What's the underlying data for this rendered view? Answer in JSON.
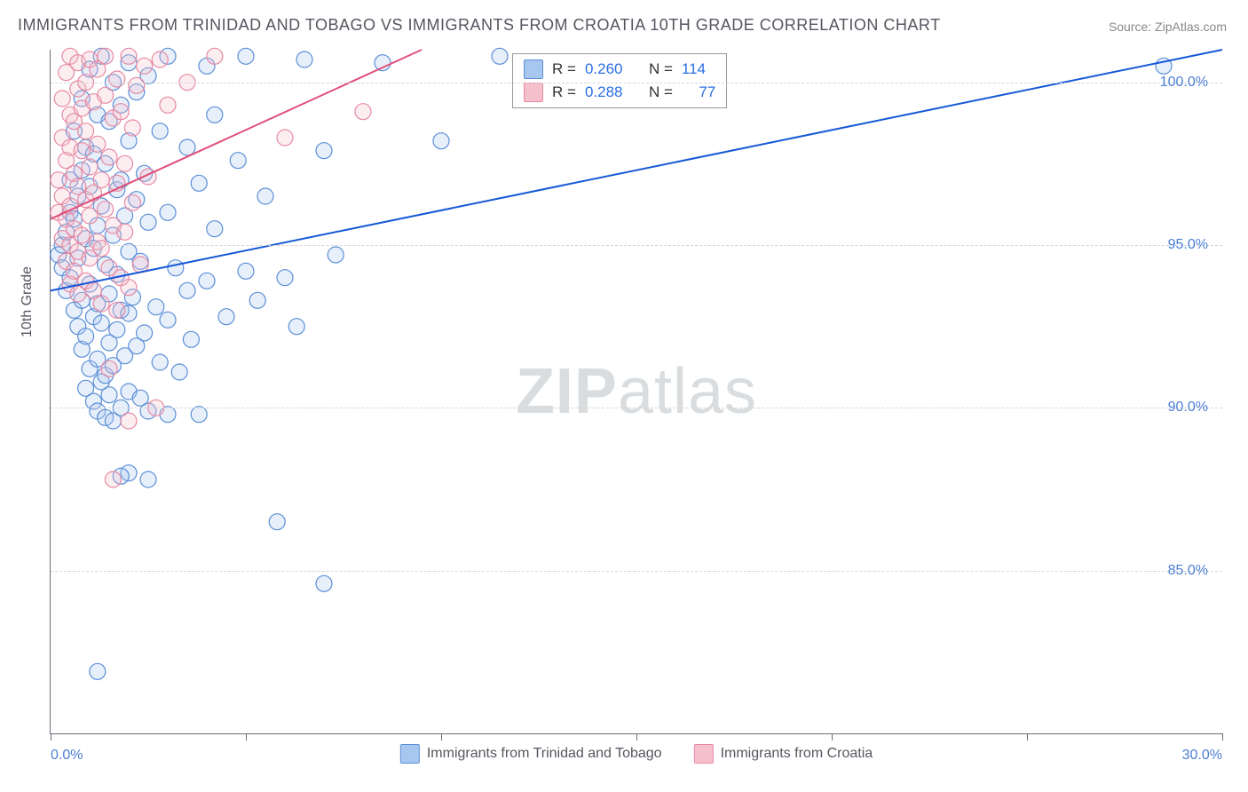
{
  "title": "IMMIGRANTS FROM TRINIDAD AND TOBAGO VS IMMIGRANTS FROM CROATIA 10TH GRADE CORRELATION CHART",
  "source_prefix": "Source: ",
  "source_name": "ZipAtlas.com",
  "y_axis_label": "10th Grade",
  "watermark_bold": "ZIP",
  "watermark_thin": "atlas",
  "chart": {
    "type": "scatter",
    "background_color": "#ffffff",
    "grid_color": "#d6d6d6",
    "axis_color": "#6b6b78",
    "xlim": [
      0,
      30
    ],
    "ylim": [
      80,
      101
    ],
    "x_ticks": [
      0,
      5,
      10,
      15,
      20,
      25,
      30
    ],
    "x_tick_labels": {
      "0": "0.0%",
      "30": "30.0%"
    },
    "y_gridlines": [
      85,
      90,
      95,
      100
    ],
    "y_tick_labels": {
      "85": "85.0%",
      "90": "90.0%",
      "95": "95.0%",
      "100": "100.0%"
    },
    "marker_radius": 9,
    "marker_fill_opacity": 0.28,
    "marker_stroke_width": 1.2,
    "line_width": 2,
    "series": [
      {
        "name": "Immigrants from Trinidad and Tobago",
        "color_fill": "#a8c7f0",
        "color_stroke": "#5b8fd6",
        "line_color": "#1558d6",
        "R": "0.260",
        "N": "114",
        "trend": {
          "x1": 0,
          "y1": 93.6,
          "x2": 30,
          "y2": 101.0
        },
        "points": [
          [
            0.2,
            94.7
          ],
          [
            0.3,
            95.0
          ],
          [
            0.3,
            94.3
          ],
          [
            0.4,
            93.6
          ],
          [
            0.4,
            95.4
          ],
          [
            0.5,
            94.0
          ],
          [
            0.5,
            96.0
          ],
          [
            0.5,
            97.0
          ],
          [
            0.6,
            93.0
          ],
          [
            0.6,
            95.8
          ],
          [
            0.6,
            98.5
          ],
          [
            0.7,
            92.5
          ],
          [
            0.7,
            94.6
          ],
          [
            0.7,
            96.5
          ],
          [
            0.8,
            91.8
          ],
          [
            0.8,
            93.3
          ],
          [
            0.8,
            97.3
          ],
          [
            0.8,
            99.5
          ],
          [
            0.9,
            90.6
          ],
          [
            0.9,
            92.2
          ],
          [
            0.9,
            95.2
          ],
          [
            0.9,
            98.0
          ],
          [
            1.0,
            91.2
          ],
          [
            1.0,
            93.8
          ],
          [
            1.0,
            96.8
          ],
          [
            1.0,
            100.4
          ],
          [
            1.1,
            90.2
          ],
          [
            1.1,
            92.8
          ],
          [
            1.1,
            94.9
          ],
          [
            1.1,
            97.8
          ],
          [
            1.2,
            89.9
          ],
          [
            1.2,
            91.5
          ],
          [
            1.2,
            93.2
          ],
          [
            1.2,
            95.6
          ],
          [
            1.2,
            99.0
          ],
          [
            1.3,
            90.8
          ],
          [
            1.3,
            92.6
          ],
          [
            1.3,
            96.2
          ],
          [
            1.3,
            100.8
          ],
          [
            1.4,
            89.7
          ],
          [
            1.4,
            91.0
          ],
          [
            1.4,
            94.4
          ],
          [
            1.4,
            97.5
          ],
          [
            1.5,
            90.4
          ],
          [
            1.5,
            92.0
          ],
          [
            1.5,
            93.5
          ],
          [
            1.5,
            98.8
          ],
          [
            1.6,
            89.6
          ],
          [
            1.6,
            91.3
          ],
          [
            1.6,
            95.3
          ],
          [
            1.6,
            100.0
          ],
          [
            1.7,
            92.4
          ],
          [
            1.7,
            94.1
          ],
          [
            1.7,
            96.7
          ],
          [
            1.8,
            90.0
          ],
          [
            1.8,
            93.0
          ],
          [
            1.8,
            97.0
          ],
          [
            1.8,
            99.3
          ],
          [
            1.9,
            91.6
          ],
          [
            1.9,
            95.9
          ],
          [
            2.0,
            88.0
          ],
          [
            2.0,
            90.5
          ],
          [
            2.0,
            92.9
          ],
          [
            2.0,
            94.8
          ],
          [
            2.0,
            98.2
          ],
          [
            2.0,
            100.6
          ],
          [
            2.1,
            93.4
          ],
          [
            2.2,
            91.9
          ],
          [
            2.2,
            96.4
          ],
          [
            2.2,
            99.7
          ],
          [
            2.3,
            90.3
          ],
          [
            2.3,
            94.5
          ],
          [
            2.4,
            92.3
          ],
          [
            2.4,
            97.2
          ],
          [
            2.5,
            89.9
          ],
          [
            2.5,
            95.7
          ],
          [
            2.5,
            100.2
          ],
          [
            2.7,
            93.1
          ],
          [
            2.8,
            91.4
          ],
          [
            2.8,
            98.5
          ],
          [
            3.0,
            89.8
          ],
          [
            3.0,
            92.7
          ],
          [
            3.0,
            96.0
          ],
          [
            3.0,
            100.8
          ],
          [
            3.2,
            94.3
          ],
          [
            3.3,
            91.1
          ],
          [
            3.5,
            93.6
          ],
          [
            3.5,
            98.0
          ],
          [
            3.6,
            92.1
          ],
          [
            3.8,
            89.8
          ],
          [
            3.8,
            96.9
          ],
          [
            4.0,
            93.9
          ],
          [
            4.0,
            100.5
          ],
          [
            4.2,
            95.5
          ],
          [
            4.2,
            99.0
          ],
          [
            4.5,
            92.8
          ],
          [
            4.8,
            97.6
          ],
          [
            5.0,
            94.2
          ],
          [
            5.0,
            100.8
          ],
          [
            5.3,
            93.3
          ],
          [
            5.5,
            96.5
          ],
          [
            5.8,
            86.5
          ],
          [
            6.0,
            94.0
          ],
          [
            6.3,
            92.5
          ],
          [
            6.5,
            100.7
          ],
          [
            7.0,
            84.6
          ],
          [
            7.0,
            97.9
          ],
          [
            7.3,
            94.7
          ],
          [
            8.5,
            100.6
          ],
          [
            10.0,
            98.2
          ],
          [
            11.5,
            100.8
          ],
          [
            1.2,
            81.9
          ],
          [
            1.8,
            87.9
          ],
          [
            2.5,
            87.8
          ],
          [
            28.5,
            100.5
          ]
        ]
      },
      {
        "name": "Immigrants from Croatia",
        "color_fill": "#f5bfcb",
        "color_stroke": "#e68aa3",
        "line_color": "#e0507a",
        "R": "0.288",
        "N": "77",
        "trend": {
          "x1": 0,
          "y1": 95.8,
          "x2": 9.5,
          "y2": 101.0
        },
        "points": [
          [
            0.2,
            96.0
          ],
          [
            0.2,
            97.0
          ],
          [
            0.3,
            95.2
          ],
          [
            0.3,
            96.5
          ],
          [
            0.3,
            98.3
          ],
          [
            0.3,
            99.5
          ],
          [
            0.4,
            94.5
          ],
          [
            0.4,
            95.8
          ],
          [
            0.4,
            97.6
          ],
          [
            0.4,
            100.3
          ],
          [
            0.5,
            93.8
          ],
          [
            0.5,
            95.0
          ],
          [
            0.5,
            96.2
          ],
          [
            0.5,
            98.0
          ],
          [
            0.5,
            99.0
          ],
          [
            0.5,
            100.8
          ],
          [
            0.6,
            94.2
          ],
          [
            0.6,
            95.5
          ],
          [
            0.6,
            97.2
          ],
          [
            0.6,
            98.8
          ],
          [
            0.7,
            93.5
          ],
          [
            0.7,
            94.8
          ],
          [
            0.7,
            96.8
          ],
          [
            0.7,
            99.8
          ],
          [
            0.7,
            100.6
          ],
          [
            0.8,
            95.3
          ],
          [
            0.8,
            97.9
          ],
          [
            0.8,
            99.2
          ],
          [
            0.9,
            93.9
          ],
          [
            0.9,
            96.4
          ],
          [
            0.9,
            98.5
          ],
          [
            0.9,
            100.0
          ],
          [
            1.0,
            94.6
          ],
          [
            1.0,
            95.9
          ],
          [
            1.0,
            97.4
          ],
          [
            1.0,
            100.7
          ],
          [
            1.1,
            93.6
          ],
          [
            1.1,
            96.6
          ],
          [
            1.1,
            99.4
          ],
          [
            1.2,
            95.1
          ],
          [
            1.2,
            98.1
          ],
          [
            1.2,
            100.4
          ],
          [
            1.3,
            93.2
          ],
          [
            1.3,
            94.9
          ],
          [
            1.3,
            97.0
          ],
          [
            1.4,
            96.1
          ],
          [
            1.4,
            99.6
          ],
          [
            1.4,
            100.8
          ],
          [
            1.5,
            94.3
          ],
          [
            1.5,
            97.7
          ],
          [
            1.5,
            91.2
          ],
          [
            1.6,
            95.6
          ],
          [
            1.6,
            98.9
          ],
          [
            1.7,
            93.0
          ],
          [
            1.7,
            96.9
          ],
          [
            1.7,
            100.1
          ],
          [
            1.8,
            94.0
          ],
          [
            1.8,
            99.1
          ],
          [
            1.9,
            95.4
          ],
          [
            1.9,
            97.5
          ],
          [
            2.0,
            89.6
          ],
          [
            2.0,
            93.7
          ],
          [
            2.0,
            100.8
          ],
          [
            2.1,
            96.3
          ],
          [
            2.1,
            98.6
          ],
          [
            2.2,
            99.9
          ],
          [
            2.3,
            94.4
          ],
          [
            2.4,
            100.5
          ],
          [
            2.5,
            97.1
          ],
          [
            2.7,
            90.0
          ],
          [
            2.8,
            100.7
          ],
          [
            3.0,
            99.3
          ],
          [
            3.5,
            100.0
          ],
          [
            4.2,
            100.8
          ],
          [
            6.0,
            98.3
          ],
          [
            8.0,
            99.1
          ],
          [
            1.6,
            87.8
          ]
        ]
      }
    ]
  },
  "stats_box": {
    "r_label": "R =",
    "n_label": "N ="
  },
  "bottom_legend_label_1": "Immigrants from Trinidad and Tobago",
  "bottom_legend_label_2": "Immigrants from Croatia"
}
